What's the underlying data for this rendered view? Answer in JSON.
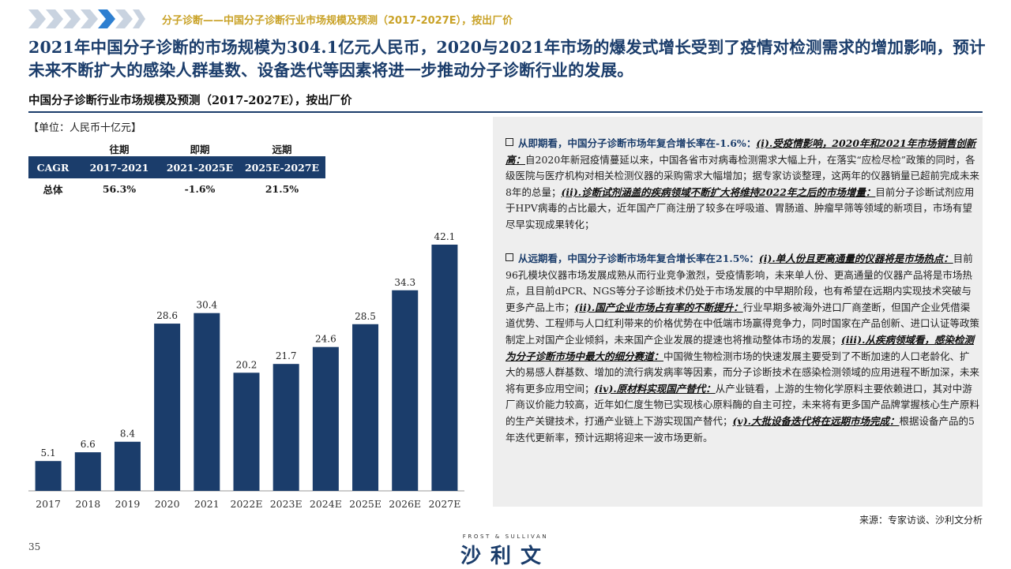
{
  "header": {
    "breadcrumb": "分子诊断——中国分子诊断行业市场规模及预测（2017-2027E），按出厂价",
    "headline": "2021年中国分子诊断的市场规模为304.1亿元人民币，2020与2021年市场的爆发式增长受到了疫情对检测需求的增加影响，预计未来不断扩大的感染人群基数、设备迭代等因素将进一步推动分子诊断行业的发展。"
  },
  "subtitle": "中国分子诊断行业市场规模及预测（2017-2027E），按出厂价",
  "unit": "【单位：人民币十亿元】",
  "cagr_table": {
    "period_headers": [
      "往期",
      "即期",
      "远期"
    ],
    "row_label": "CAGR",
    "ranges": [
      "2017-2021",
      "2021-2025E",
      "2025E-2027E"
    ],
    "total_label": "总体",
    "values": [
      "56.3%",
      "-1.6%",
      "21.5%"
    ]
  },
  "chart_data": {
    "type": "bar",
    "categories": [
      "2017",
      "2018",
      "2019",
      "2020",
      "2021",
      "2022E",
      "2023E",
      "2024E",
      "2025E",
      "2026E",
      "2027E"
    ],
    "values": [
      5.1,
      6.6,
      8.4,
      28.6,
      30.4,
      20.2,
      21.7,
      24.6,
      28.5,
      34.3,
      42.1
    ],
    "value_labels": [
      "5.1",
      "6.6",
      "8.4",
      "28.6",
      "30.4",
      "20.2",
      "21.7",
      "24.6",
      "28.5",
      "34.3",
      "42.1"
    ],
    "ylim": [
      0,
      42.1
    ],
    "grid": false,
    "bar_color": "#1b3d6b"
  },
  "analysis": {
    "b1_lead": "从即期看，中国分子诊断市场年复合增长率在-1.6%：",
    "b1_u1": "(i).受疫情影响，2020年和2021年市场销售创新高：",
    "b1_t1": "自2020年新冠疫情蔓延以来，中国各省市对病毒检测需求大幅上升，在落实“应检尽检”政策的同时，各级医院与医疗机构对相关检测仪器的采购需求大幅增加；据专家访谈整理，这两年的仪器销量已超前完成未来8年的总量；",
    "b1_u2": "(ii).诊断试剂涵盖的疾病领域不断扩大将维持2022年之后的市场增量：",
    "b1_t2": "目前分子诊断试剂应用于HPV病毒的占比最大，近年国产厂商注册了较多在呼吸道、胃肠道、肿瘤早筛等领域的新项目，市场有望尽早实现成果转化；",
    "b2_lead": "从远期看，中国分子诊断市场年复合增长率在21.5%：",
    "b2_u1": "(i).单人份且更高通量的仪器将是市场热点：",
    "b2_t1": "目前96孔模块仪器市场发展成熟从而行业竞争激烈，受疫情影响，未来单人份、更高通量的仪器产品将是市场热点，且目前dPCR、NGS等分子诊断技术仍处于市场发展的中早期阶段，也有希望在远期内实现技术突破与更多产品上市；",
    "b2_u2": "(ii).国产企业市场占有率的不断提升：",
    "b2_t2": "行业早期多被海外进口厂商垄断，但国产企业凭借渠道优势、工程师与人口红利带来的价格优势在中低端市场赢得竞争力，同时国家在产品创新、进口认证等政策制定上对国产企业倾斜，未来国产企业发展的提速也将推动整体市场的发展；",
    "b2_u3": "(iii).从疾病领域看，感染检测为分子诊断市场中最大的细分赛道：",
    "b2_t3": "中国微生物检测市场的快速发展主要受到了不断加速的人口老龄化、扩大的易感人群基数、增加的流行病发病率等因素，而分子诊断技术在感染检测领域的应用进程不断加深，未来将有更多应用空间；",
    "b2_u4": "(iv).原材料实现国产替代：",
    "b2_t4": "从产业链看，上游的生物化学原料主要依赖进口，其对中游厂商议价能力较高，近年如仁度生物已实现核心原料酶的自主可控，未来将有更多国产品牌掌握核心生产原料的生产关键技术，打通产业链上下游实现国产替代；",
    "b2_u5": "(v).大批设备迭代将在远期市场完成：",
    "b2_t5": "根据设备产品的5年迭代更新率，预计远期将迎来一波市场更新。"
  },
  "footer": {
    "source": "来源：专家访谈、沙利文分析",
    "page": "35",
    "logo_en": "FROST & SULLIVAN",
    "logo_cn": "沙利文"
  },
  "colors": {
    "navy": "#1b3d6b",
    "gold": "#c9a227",
    "panel": "#eeeeee",
    "chevron_light": "#c9d3e0"
  }
}
